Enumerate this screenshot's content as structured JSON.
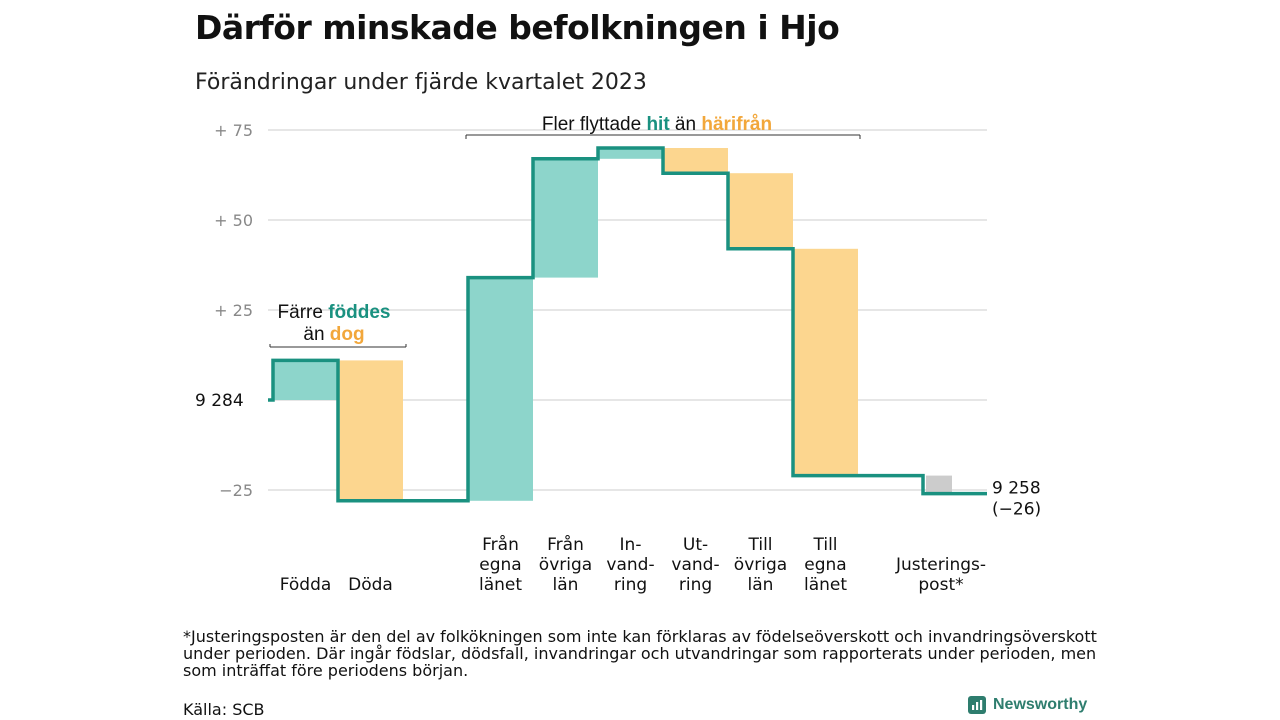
{
  "title": "Därför minskade befolkningen i Hjo",
  "subtitle": "Förändringar under fjärde kvartalet 2023",
  "footnote": "*Justeringsposten är den del av folkökningen som inte kan förklaras av födelseöverskott och invandringsöverskott under perioden. Där ingår födslar, dödsfall, invandringar och utvandringar som rapporterats under perioden, men som inträffat före periodens början.",
  "source": "Källa: SCB",
  "brand": "Newsworthy",
  "colors": {
    "increase": "#8dd5cb",
    "decrease": "#fcd68f",
    "adjustment": "#cccccc",
    "line": "#1a9180",
    "teal_text": "#1a9180",
    "orange_text": "#f2a73b",
    "grid": "#dddddd",
    "tick": "#888888"
  },
  "chart_data": {
    "type": "waterfall",
    "start_value": 9284,
    "start_label": "9 284",
    "end_value": 9258,
    "end_label": "9 258",
    "change_label": "(−26)",
    "yticks": [
      {
        "value": 75,
        "label": "+  75"
      },
      {
        "value": 50,
        "label": "+  50"
      },
      {
        "value": 25,
        "label": "+  25"
      },
      {
        "value": -25,
        "label": "−25"
      }
    ],
    "ylim": [
      -30,
      80
    ],
    "steps": [
      {
        "label": [
          "Födda"
        ],
        "value": 11,
        "kind": "increase"
      },
      {
        "label": [
          "Döda"
        ],
        "value": -39,
        "kind": "decrease"
      },
      {
        "label": [],
        "value": 0,
        "kind": "gap"
      },
      {
        "label": [
          "Från",
          "egna",
          "länet"
        ],
        "value": 62,
        "kind": "increase"
      },
      {
        "label": [
          "Från",
          "övriga",
          "län"
        ],
        "value": 33,
        "kind": "increase"
      },
      {
        "label": [
          "In-",
          "vand-",
          "ring"
        ],
        "value": 3,
        "kind": "increase"
      },
      {
        "label": [
          "Ut-",
          "vand-",
          "ring"
        ],
        "value": -7,
        "kind": "decrease"
      },
      {
        "label": [
          "Till",
          "övriga",
          "län"
        ],
        "value": -21,
        "kind": "decrease"
      },
      {
        "label": [
          "Till",
          "egna",
          "länet"
        ],
        "value": -63,
        "kind": "decrease"
      },
      {
        "label": [],
        "value": 0,
        "kind": "gap"
      },
      {
        "label": [
          "Justerings-",
          "post*"
        ],
        "value": -5,
        "kind": "adjustment"
      }
    ],
    "annotations": [
      {
        "parts": [
          {
            "text": "Färre ",
            "color": "dark"
          },
          {
            "text": "föddes",
            "color": "teal"
          }
        ],
        "line2": [
          {
            "text": "än ",
            "color": "dark"
          },
          {
            "text": "dog",
            "color": "orange"
          }
        ]
      },
      {
        "parts": [
          {
            "text": "Fler flyttade ",
            "color": "dark"
          },
          {
            "text": "hit",
            "color": "teal"
          },
          {
            "text": "  än ",
            "color": "dark"
          },
          {
            "text": "härifrån",
            "color": "orange"
          }
        ]
      }
    ]
  }
}
